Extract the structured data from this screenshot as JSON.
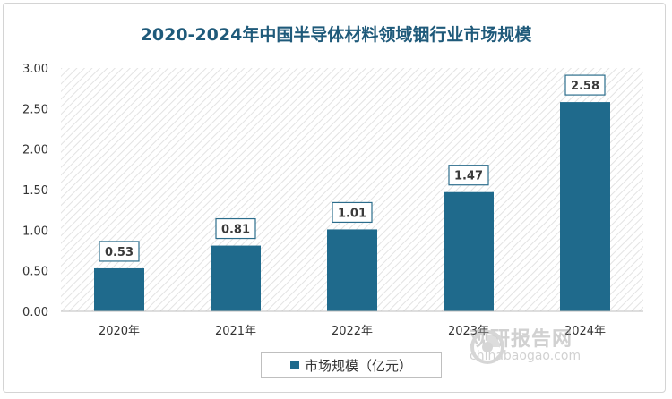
{
  "chart_data": {
    "type": "bar",
    "title": "2020-2024年中国半导体材料领域铟行业市场规模",
    "categories": [
      "2020年",
      "2021年",
      "2022年",
      "2023年",
      "2024年"
    ],
    "series": [
      {
        "name": "市场规模（亿元）",
        "values": [
          0.53,
          0.81,
          1.01,
          1.47,
          2.58
        ]
      }
    ],
    "data_labels": [
      "0.53",
      "0.81",
      "1.01",
      "1.47",
      "2.58"
    ],
    "ylim": [
      0,
      3.0
    ],
    "y_ticks": [
      "0.00",
      "0.50",
      "1.00",
      "1.50",
      "2.00",
      "2.50",
      "3.00"
    ],
    "xlabel": "",
    "ylabel": "",
    "grid": false,
    "legend_position": "bottom",
    "colors": {
      "bar": "#1f6a8c",
      "title": "#1f5a7a",
      "plot_hatch": "#e6e6e6"
    }
  },
  "watermark": {
    "cn": "观研报告网",
    "en": "chinabaogao.com",
    "logo_icon": "chinabaogao-logo-icon"
  }
}
